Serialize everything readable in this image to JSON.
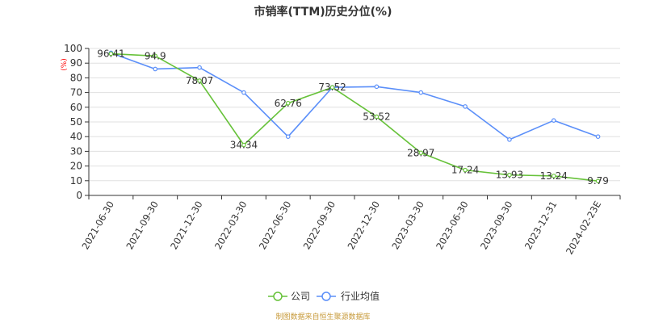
{
  "colors": {
    "company": "#67C23A",
    "industry": "#5B8FF9",
    "unit": "#ff0000",
    "source": "#c79a3a"
  },
  "chart_data": {
    "type": "line",
    "title": "市销率(TTM)历史分位(%)",
    "ylabel": "(%)",
    "ylim": [
      0,
      100
    ],
    "yticks": [
      "0",
      "10",
      "20",
      "30",
      "40",
      "50",
      "60",
      "70",
      "80",
      "90",
      "100"
    ],
    "categories": [
      "2021-06-30",
      "2021-09-30",
      "2021-12-30",
      "2022-03-30",
      "2022-06-30",
      "2022-09-30",
      "2022-12-30",
      "2023-03-30",
      "2023-06-30",
      "2023-09-30",
      "2023-12-31",
      "2024-02-23E"
    ],
    "series": [
      {
        "name": "公司",
        "values": [
          96.41,
          94.9,
          78.07,
          34.34,
          62.76,
          73.52,
          53.52,
          28.97,
          17.24,
          13.93,
          13.24,
          9.79
        ],
        "labels": [
          "96.41",
          "94.9",
          "78.07",
          "34.34",
          "62.76",
          "73.52",
          "53.52",
          "28.97",
          "17.24",
          "13.93",
          "13.24",
          "9.79"
        ]
      },
      {
        "name": "行业均值",
        "values": [
          97,
          86,
          87,
          70,
          40,
          73.5,
          74,
          70,
          60.5,
          38,
          51,
          40
        ]
      }
    ],
    "grid": true,
    "legend": "bottom-center"
  },
  "source": "制图数据来自恒生聚源数据库"
}
